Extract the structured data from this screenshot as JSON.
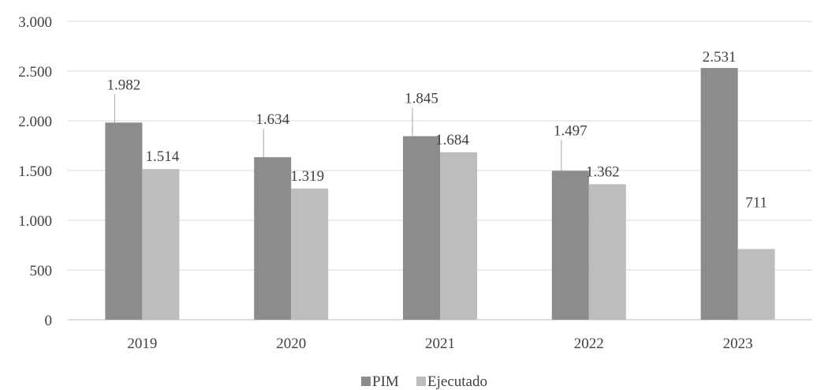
{
  "chart_data": {
    "type": "bar",
    "categories": [
      "2019",
      "2020",
      "2021",
      "2022",
      "2023"
    ],
    "series": [
      {
        "name": "PIM",
        "values": [
          1982,
          1634,
          1845,
          1497,
          2531
        ],
        "labels": [
          "1.982",
          "1.634",
          "1.845",
          "1.497",
          "2.531"
        ],
        "color": "#8c8c8c"
      },
      {
        "name": "Ejecutado",
        "values": [
          1514,
          1319,
          1684,
          1362,
          711
        ],
        "labels": [
          "1.514",
          "1.319",
          "1.684",
          "1.362",
          "711"
        ],
        "color": "#bdbdbd"
      }
    ],
    "yticks": [
      0,
      500,
      1000,
      1500,
      2000,
      2500,
      3000
    ],
    "ytick_labels": [
      "0",
      "500",
      "1.000",
      "1.500",
      "2.000",
      "2.500",
      "3.000"
    ],
    "ylim": [
      0,
      3000
    ],
    "grid": true,
    "legend_position": "bottom"
  }
}
